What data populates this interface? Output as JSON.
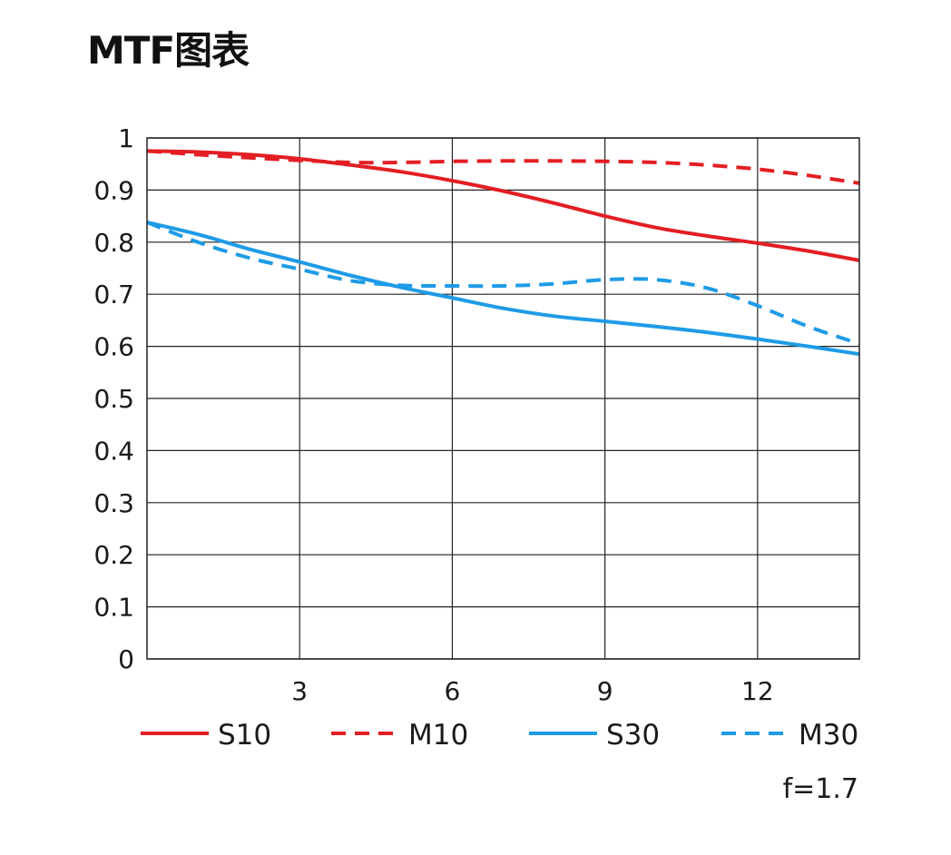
{
  "chart_data": {
    "type": "line",
    "title": "MTF图表",
    "xlabel": "",
    "ylabel": "",
    "xlim": [
      0,
      14
    ],
    "ylim": [
      0,
      1
    ],
    "xticks": [
      3,
      6,
      9,
      12
    ],
    "yticks": [
      0,
      0.1,
      0.2,
      0.3,
      0.4,
      0.5,
      0.6,
      0.7,
      0.8,
      0.9,
      1
    ],
    "ytick_labels": [
      "0",
      "0.1",
      "0.2",
      "0.3",
      "0.4",
      "0.5",
      "0.6",
      "0.7",
      "0.8",
      "0.9",
      "1"
    ],
    "grid": true,
    "legend_position": "bottom",
    "annotation": "f=1.7",
    "series": [
      {
        "name": "S10",
        "color": "#e31e24",
        "dash": false,
        "x": [
          0,
          1,
          2,
          3,
          4,
          5,
          6,
          7,
          8,
          9,
          10,
          11,
          12,
          13,
          14
        ],
        "y": [
          0.975,
          0.973,
          0.968,
          0.96,
          0.948,
          0.935,
          0.918,
          0.898,
          0.875,
          0.85,
          0.828,
          0.812,
          0.798,
          0.783,
          0.765
        ]
      },
      {
        "name": "M10",
        "color": "#e31e24",
        "dash": true,
        "x": [
          0,
          1,
          2,
          3,
          4,
          5,
          6,
          7,
          8,
          9,
          10,
          11,
          12,
          13,
          14
        ],
        "y": [
          0.975,
          0.968,
          0.962,
          0.957,
          0.953,
          0.953,
          0.955,
          0.956,
          0.956,
          0.955,
          0.953,
          0.948,
          0.94,
          0.928,
          0.913
        ]
      },
      {
        "name": "S30",
        "color": "#1e9be6",
        "dash": false,
        "x": [
          0,
          1,
          2,
          3,
          4,
          5,
          6,
          7,
          8,
          9,
          10,
          11,
          12,
          13,
          14
        ],
        "y": [
          0.838,
          0.815,
          0.787,
          0.762,
          0.736,
          0.713,
          0.693,
          0.673,
          0.658,
          0.648,
          0.638,
          0.627,
          0.614,
          0.6,
          0.585
        ]
      },
      {
        "name": "M30",
        "color": "#1e9be6",
        "dash": true,
        "x": [
          0,
          1,
          2,
          3,
          4,
          5,
          6,
          7,
          8,
          9,
          10,
          11,
          12,
          13,
          14
        ],
        "y": [
          0.838,
          0.8,
          0.77,
          0.748,
          0.726,
          0.717,
          0.716,
          0.716,
          0.72,
          0.728,
          0.728,
          0.712,
          0.678,
          0.638,
          0.605
        ]
      }
    ]
  }
}
